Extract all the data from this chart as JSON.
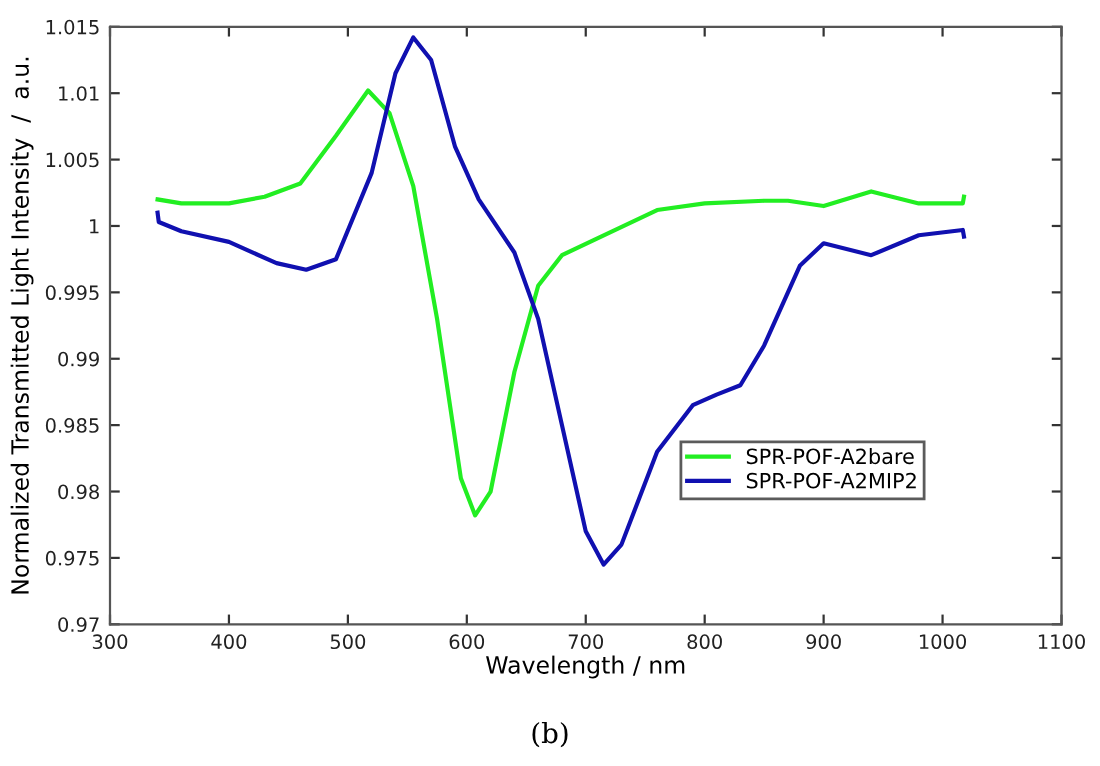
{
  "chart_data": {
    "type": "line",
    "xlabel": "Wavelength / nm",
    "ylabel": "Normalized Transmitted Light Intensity  /  a.u.",
    "annotations": [
      "(b)"
    ],
    "xlim": [
      300,
      1100
    ],
    "xticks": [
      300,
      400,
      500,
      600,
      700,
      800,
      900,
      1000,
      1100
    ],
    "ylim": [
      0.97,
      1.015
    ],
    "yticks": [
      0.97,
      0.975,
      0.98,
      0.985,
      0.99,
      0.995,
      1,
      1.005,
      1.01,
      1.015
    ],
    "grid": false,
    "legend": "bottom right",
    "series": [
      {
        "name": "SPR-POF-A2bare",
        "color": "#22ee22",
        "x": [
          340,
          360,
          400,
          430,
          460,
          490,
          517,
          535,
          555,
          575,
          595,
          607,
          620,
          640,
          660,
          680,
          720,
          760,
          800,
          850,
          870,
          900,
          940,
          980,
          1017,
          1018
        ],
        "values": [
          1.002,
          1.0017,
          1.0017,
          1.0022,
          1.0032,
          1.0068,
          1.0102,
          1.0085,
          1.003,
          0.993,
          0.981,
          0.9782,
          0.98,
          0.989,
          0.9955,
          0.9978,
          0.9995,
          1.0012,
          1.0017,
          1.0019,
          1.0019,
          1.0015,
          1.0026,
          1.0017,
          1.0017,
          1.0022
        ]
      },
      {
        "name": "SPR-POF-A2MIP2",
        "color": "#1010b0",
        "x": [
          340,
          341,
          360,
          400,
          440,
          465,
          490,
          520,
          540,
          555,
          570,
          590,
          610,
          640,
          660,
          680,
          700,
          715,
          730,
          760,
          790,
          810,
          830,
          850,
          880,
          900,
          940,
          980,
          1017,
          1018
        ],
        "values": [
          1.001,
          1.0003,
          0.9996,
          0.9988,
          0.9972,
          0.9967,
          0.9975,
          1.004,
          1.0115,
          1.0142,
          1.0125,
          1.006,
          1.002,
          0.998,
          0.993,
          0.985,
          0.977,
          0.9745,
          0.976,
          0.983,
          0.9865,
          0.9873,
          0.988,
          0.991,
          0.997,
          0.9987,
          0.9978,
          0.9993,
          0.9997,
          0.9992
        ]
      }
    ]
  }
}
